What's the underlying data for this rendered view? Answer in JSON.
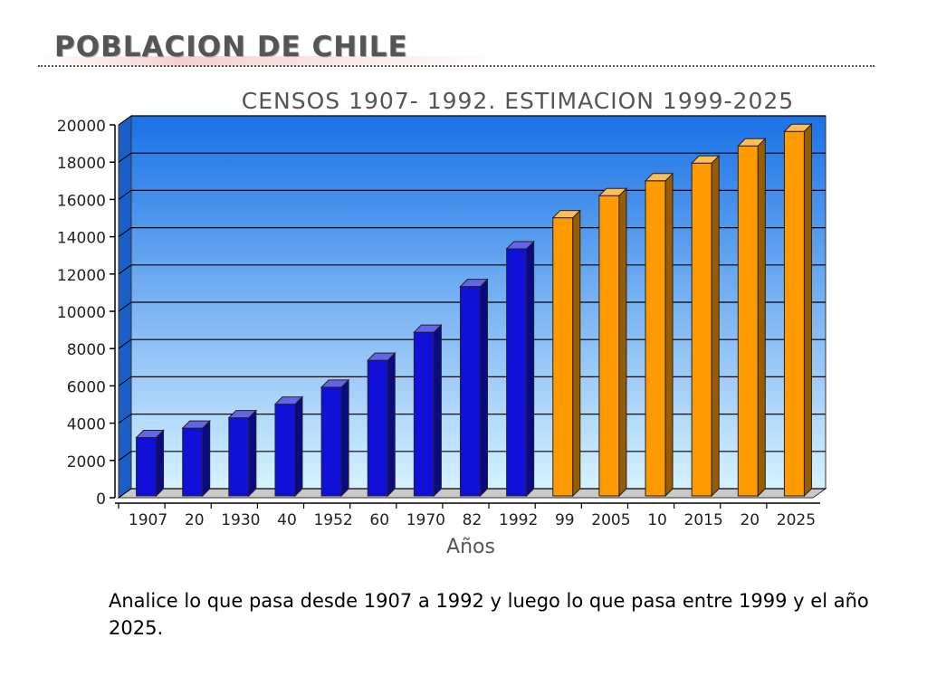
{
  "slide": {
    "title": "POBLACION DE CHILE",
    "caption": "Analice lo que pasa desde 1907 a 1992 y luego lo que pasa entre 1999 y el año 2025."
  },
  "chart_data": {
    "type": "bar",
    "title": "CENSOS 1907- 1992. ESTIMACION 1999-2025",
    "xlabel": "Años",
    "ylabel": "",
    "ylim": [
      0,
      20000
    ],
    "yticks": [
      0,
      2000,
      4000,
      6000,
      8000,
      10000,
      12000,
      14000,
      16000,
      18000,
      20000
    ],
    "grid": true,
    "categories": [
      "1907",
      "20",
      "1930",
      "40",
      "1952",
      "60",
      "1970",
      "82",
      "1992",
      "99",
      "2005",
      "10",
      "2015",
      "20",
      "2025"
    ],
    "values": [
      3230,
      3730,
      4290,
      5020,
      5930,
      7370,
      8880,
      11330,
      13350,
      15020,
      16200,
      17000,
      17950,
      18870,
      19650
    ],
    "series_colors": {
      "censos": "#1010d8",
      "estimacion": "#ff9a00"
    },
    "bar_groups": [
      "censos",
      "censos",
      "censos",
      "censos",
      "censos",
      "censos",
      "censos",
      "censos",
      "censos",
      "estimacion",
      "estimacion",
      "estimacion",
      "estimacion",
      "estimacion",
      "estimacion"
    ],
    "colors": {
      "plot_top": "#1a72e6",
      "plot_bottom": "#d6f2ff",
      "title_color": "#555555"
    }
  }
}
